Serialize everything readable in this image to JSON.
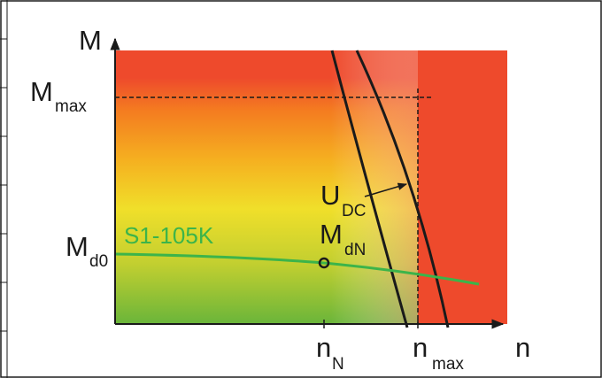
{
  "diagram": {
    "axes": {
      "y_label": "M",
      "x_label": "n"
    },
    "labels": {
      "m_max_main": "M",
      "m_max_sub": "max",
      "m_d0_main": "M",
      "m_d0_sub": "d0",
      "m_dn_main": "M",
      "m_dn_sub": "dN",
      "u_dc_main": "U",
      "u_dc_sub": "DC",
      "n_n_main": "n",
      "n_n_sub": "N",
      "n_max_main": "n",
      "n_max_sub": "max"
    },
    "curve_label": "S1-105K",
    "colors": {
      "danger": "#ee4a2c",
      "curve": "#3cb44a",
      "zone_yellow": "#f4e62c",
      "zone_green": "#6ab53a",
      "zone_orange": "#f39a1c"
    }
  }
}
